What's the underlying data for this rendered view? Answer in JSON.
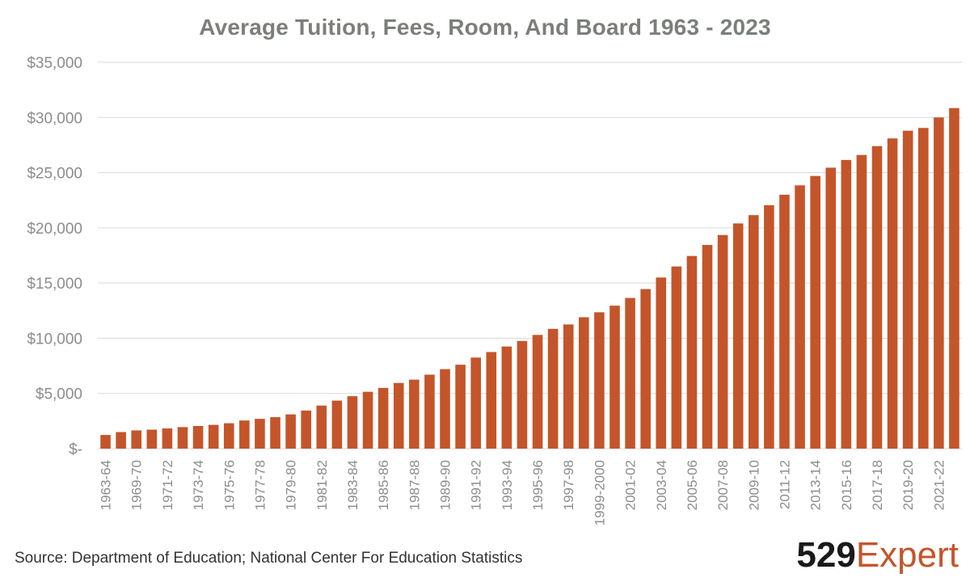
{
  "footer": {
    "source": "Source: Department of Education; National Center For Education Statistics",
    "logo_number": "529",
    "logo_word": "Expert"
  },
  "colors": {
    "bar": "#c4552b",
    "title": "#7b7f7b",
    "axis_text": "#8c8c8c",
    "grid": "#d9d9d9"
  },
  "chart_data": {
    "type": "bar",
    "title": "Average Tuition, Fees, Room, And Board 1963 - 2023",
    "xlabel": "",
    "ylabel": "",
    "ylim": [
      0,
      35000
    ],
    "yticks": [
      0,
      5000,
      10000,
      15000,
      20000,
      25000,
      30000,
      35000
    ],
    "ytick_labels": [
      "$-",
      "$5,000",
      "$10,000",
      "$15,000",
      "$20,000",
      "$25,000",
      "$30,000",
      "$35,000"
    ],
    "grid": true,
    "legend": "none",
    "categories": [
      "1963-64",
      "1964-65",
      "1969-70",
      "1970-71",
      "1971-72",
      "1972-73",
      "1973-74",
      "1974-75",
      "1975-76",
      "1976-77",
      "1977-78",
      "1978-79",
      "1979-80",
      "1980-81",
      "1981-82",
      "1982-83",
      "1983-84",
      "1984-85",
      "1985-86",
      "1986-87",
      "1987-88",
      "1988-89",
      "1989-90",
      "1990-91",
      "1991-92",
      "1992-93",
      "1993-94",
      "1994-95",
      "1995-96",
      "1996-97",
      "1997-98",
      "1998-99",
      "1999-2000",
      "2000-01",
      "2001-02",
      "2002-03",
      "2003-04",
      "2004-05",
      "2005-06",
      "2006-07",
      "2007-08",
      "2008-09",
      "2009-10",
      "2010-11",
      "2011-12",
      "2012-13",
      "2013-14",
      "2014-15",
      "2015-16",
      "2016-17",
      "2017-18",
      "2018-19",
      "2019-20",
      "2020-21",
      "2021-22",
      "2022-23"
    ],
    "tick_labels": [
      "1963-64",
      "",
      "1969-70",
      "",
      "1971-72",
      "",
      "1973-74",
      "",
      "1975-76",
      "",
      "1977-78",
      "",
      "1979-80",
      "",
      "1981-82",
      "",
      "1983-84",
      "",
      "1985-86",
      "",
      "1987-88",
      "",
      "1989-90",
      "",
      "1991-92",
      "",
      "1993-94",
      "",
      "1995-96",
      "",
      "1997-98",
      "",
      "1999-2000",
      "",
      "2001-02",
      "",
      "2003-04",
      "",
      "2005-06",
      "",
      "2007-08",
      "",
      "2009-10",
      "",
      "2011-12",
      "",
      "2013-14",
      "",
      "2015-16",
      "",
      "2017-18",
      "",
      "2019-20",
      "",
      "2021-22",
      ""
    ],
    "values": [
      1240,
      1500,
      1650,
      1720,
      1830,
      1950,
      2050,
      2150,
      2300,
      2550,
      2700,
      2850,
      3100,
      3450,
      3900,
      4350,
      4750,
      5150,
      5500,
      5950,
      6250,
      6700,
      7200,
      7600,
      8250,
      8750,
      9250,
      9750,
      10300,
      10850,
      11250,
      11900,
      12350,
      12950,
      13650,
      14450,
      15500,
      16500,
      17450,
      18450,
      19350,
      20400,
      21150,
      22050,
      23000,
      23850,
      24700,
      25450,
      26150,
      26600,
      27400,
      28100,
      28800,
      29050,
      30000,
      30850
    ]
  }
}
